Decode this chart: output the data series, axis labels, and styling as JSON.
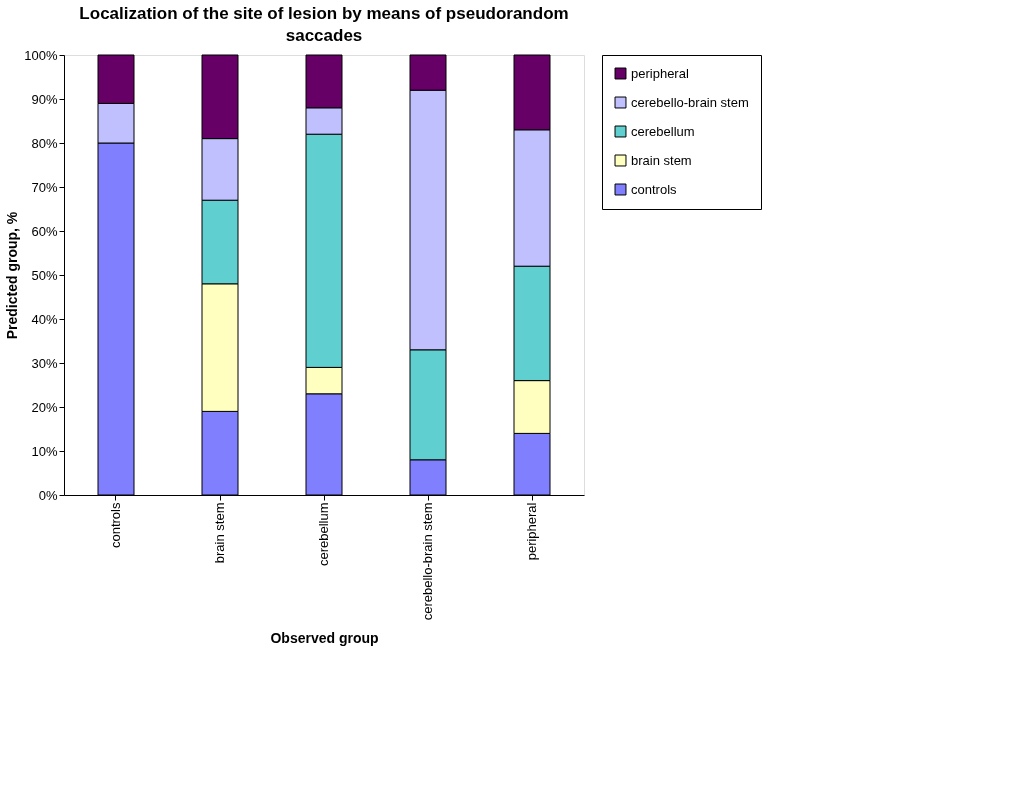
{
  "chart_data": {
    "type": "bar",
    "title": "Localization of the site of lesion by means of pseudorandom saccades",
    "xlabel": "Observed group",
    "ylabel": "Predicted group, %",
    "categories": [
      "controls",
      "brain stem",
      "cerebellum",
      "cerebello-brain stem",
      "peripheral"
    ],
    "stacked": true,
    "series": [
      {
        "name": "controls",
        "color": "#8080ff",
        "values": [
          80,
          19,
          23,
          8,
          14
        ]
      },
      {
        "name": "brain stem",
        "color": "#ffffc0",
        "values": [
          0,
          29,
          6,
          0,
          12
        ]
      },
      {
        "name": "cerebellum",
        "color": "#5fcfcf",
        "values": [
          0,
          19,
          53,
          25,
          26
        ]
      },
      {
        "name": "cerebello-brain stem",
        "color": "#c0c0ff",
        "values": [
          9,
          14,
          6,
          59,
          31
        ]
      },
      {
        "name": "peripheral",
        "color": "#660066",
        "values": [
          11,
          19,
          12,
          8,
          17
        ]
      }
    ],
    "ylim": [
      0,
      100
    ],
    "yticks": [
      {
        "value": 0,
        "label": "0%"
      },
      {
        "value": 10,
        "label": "10%"
      },
      {
        "value": 20,
        "label": "20%"
      },
      {
        "value": 30,
        "label": "30%"
      },
      {
        "value": 40,
        "label": "40%"
      },
      {
        "value": 50,
        "label": "50%"
      },
      {
        "value": 60,
        "label": "60%"
      },
      {
        "value": 70,
        "label": "70%"
      },
      {
        "value": 80,
        "label": "80%"
      },
      {
        "value": 90,
        "label": "90%"
      },
      {
        "value": 100,
        "label": "100%"
      }
    ],
    "grid": false,
    "legend": "right"
  }
}
